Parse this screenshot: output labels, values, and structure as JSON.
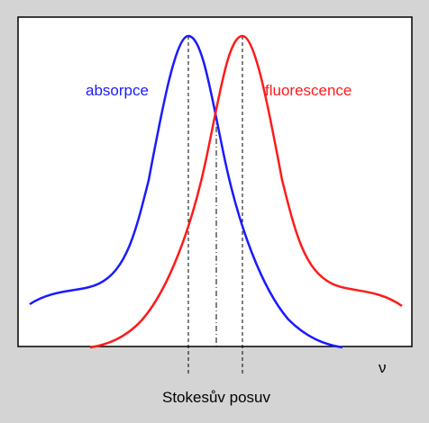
{
  "labels": {
    "absorption": "absorpce",
    "fluorescence": "fluorescence",
    "axis": "ν",
    "shift": "Stokesův posuv"
  }
}
